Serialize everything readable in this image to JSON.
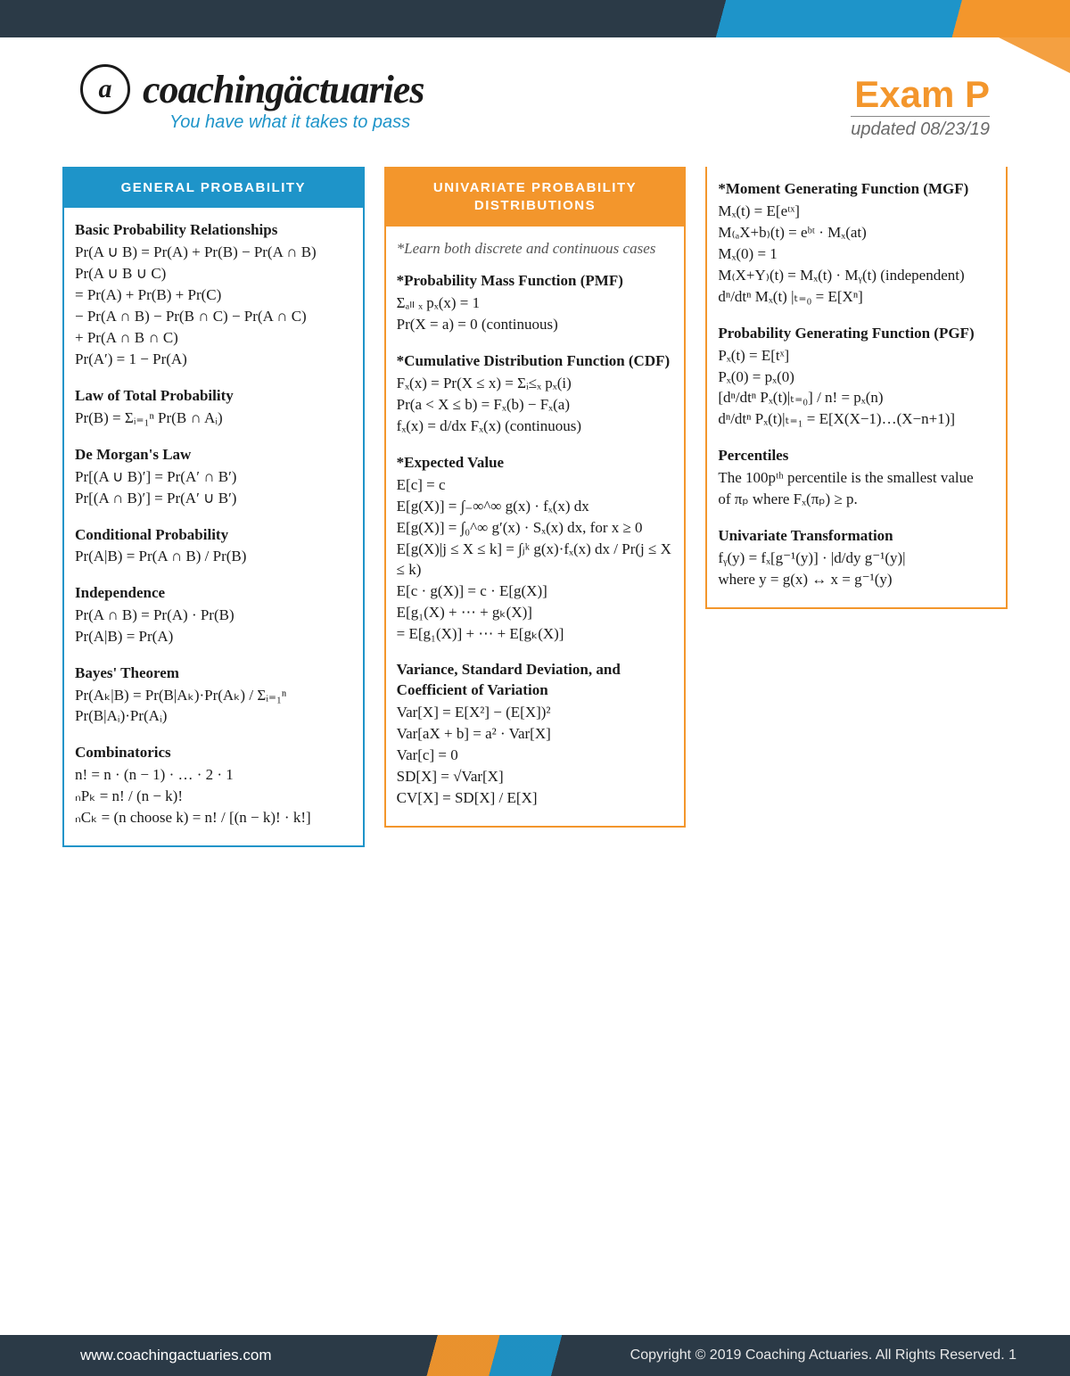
{
  "brand": {
    "logo_glyph": "a",
    "name": "coachingäctuaries",
    "tagline": "You have what it takes to pass"
  },
  "exam": {
    "title": "Exam P",
    "updated": "updated 08/23/19"
  },
  "colors": {
    "blue": "#1e94c9",
    "orange": "#f3962c",
    "dark": "#2b3a47"
  },
  "columns": {
    "col1": {
      "header": "GENERAL PROBABILITY",
      "sections": [
        {
          "title": "Basic Probability Relationships",
          "lines": [
            "Pr(A ∪ B) = Pr(A) + Pr(B) − Pr(A ∩ B)",
            "Pr(A ∪ B ∪ C)",
            "= Pr(A) + Pr(B) + Pr(C)",
            "  − Pr(A ∩ B) − Pr(B ∩ C) − Pr(A ∩ C)",
            "  + Pr(A ∩ B ∩ C)",
            "Pr(A′) = 1 − Pr(A)"
          ]
        },
        {
          "title": "Law of Total Probability",
          "lines": [
            "Pr(B) = Σᵢ₌₁ⁿ Pr(B ∩ Aᵢ)"
          ]
        },
        {
          "title": "De Morgan's Law",
          "lines": [
            "Pr[(A ∪ B)′] = Pr(A′ ∩ B′)",
            "Pr[(A ∩ B)′] = Pr(A′ ∪ B′)"
          ]
        },
        {
          "title": "Conditional Probability",
          "lines": [
            "Pr(A|B) = Pr(A ∩ B) / Pr(B)"
          ]
        },
        {
          "title": "Independence",
          "lines": [
            "Pr(A ∩ B) = Pr(A) · Pr(B)",
            "Pr(A|B) = Pr(A)"
          ]
        },
        {
          "title": "Bayes' Theorem",
          "lines": [
            "Pr(Aₖ|B) = Pr(B|Aₖ)·Pr(Aₖ) / Σᵢ₌₁ⁿ Pr(B|Aᵢ)·Pr(Aᵢ)"
          ]
        },
        {
          "title": "Combinatorics",
          "lines": [
            "n! = n · (n − 1) · … · 2 · 1",
            "ₙPₖ = n! / (n − k)!",
            "ₙCₖ = (n choose k) = n! / [(n − k)! · k!]"
          ]
        }
      ]
    },
    "col2": {
      "header": "UNIVARIATE PROBABILITY DISTRIBUTIONS",
      "note": "*Learn both discrete and continuous cases",
      "sections": [
        {
          "title": "*Probability Mass Function (PMF)",
          "lines": [
            "Σₐₗₗ ₓ pₓ(x) = 1",
            "Pr(X = a) = 0 (continuous)"
          ]
        },
        {
          "title": "*Cumulative Distribution Function (CDF)",
          "lines": [
            "Fₓ(x) = Pr(X ≤ x) = Σᵢ≤ₓ pₓ(i)",
            "Pr(a < X ≤ b) = Fₓ(b) − Fₓ(a)",
            "fₓ(x) = d/dx Fₓ(x) (continuous)"
          ]
        },
        {
          "title": "*Expected Value",
          "lines": [
            "E[c] = c",
            "E[g(X)] = ∫₋∞^∞ g(x) · fₓ(x) dx",
            "E[g(X)] = ∫₀^∞ g′(x) · Sₓ(x) dx, for x ≥ 0",
            "E[g(X)|j ≤ X ≤ k] = ∫ⱼᵏ g(x)·fₓ(x) dx / Pr(j ≤ X ≤ k)",
            "E[c · g(X)] = c · E[g(X)]",
            "E[g₁(X) + ⋯ + gₖ(X)]",
            "   = E[g₁(X)] + ⋯ + E[gₖ(X)]"
          ]
        },
        {
          "title": "Variance, Standard Deviation, and Coefficient of Variation",
          "lines": [
            "Var[X] = E[X²] − (E[X])²",
            "Var[aX + b] = a² · Var[X]",
            "Var[c] = 0",
            "SD[X] = √Var[X]",
            "CV[X] = SD[X] / E[X]"
          ]
        }
      ]
    },
    "col3": {
      "sections": [
        {
          "title": "*Moment Generating Function (MGF)",
          "lines": [
            "Mₓ(t) = E[eᵗˣ]",
            "M₍ₐX+b₎(t) = eᵇᵗ · Mₓ(at)",
            "Mₓ(0) = 1",
            "M₍X+Y₎(t) = Mₓ(t) · Mᵧ(t) (independent)",
            "dⁿ/dtⁿ Mₓ(t) |ₜ₌₀ = E[Xⁿ]"
          ]
        },
        {
          "title": "Probability Generating Function (PGF)",
          "lines": [
            "Pₓ(t) = E[tˣ]",
            "Pₓ(0) = pₓ(0)",
            "[dⁿ/dtⁿ Pₓ(t)|ₜ₌₀] / n! = pₓ(n)",
            "dⁿ/dtⁿ Pₓ(t)|ₜ₌₁ = E[X(X−1)…(X−n+1)]"
          ]
        },
        {
          "title": "Percentiles",
          "lines": [
            "The 100pᵗʰ percentile is the smallest value",
            "of πₚ where Fₓ(πₚ) ≥ p."
          ]
        },
        {
          "title": "Univariate Transformation",
          "lines": [
            "fᵧ(y) = fₓ[g⁻¹(y)] · |d/dy g⁻¹(y)|",
            "where y = g(x) ↔ x = g⁻¹(y)"
          ]
        }
      ]
    }
  },
  "footer": {
    "url": "www.coachingactuaries.com",
    "copyright": "Copyright © 2019 Coaching Actuaries. All Rights Reserved.   1"
  }
}
